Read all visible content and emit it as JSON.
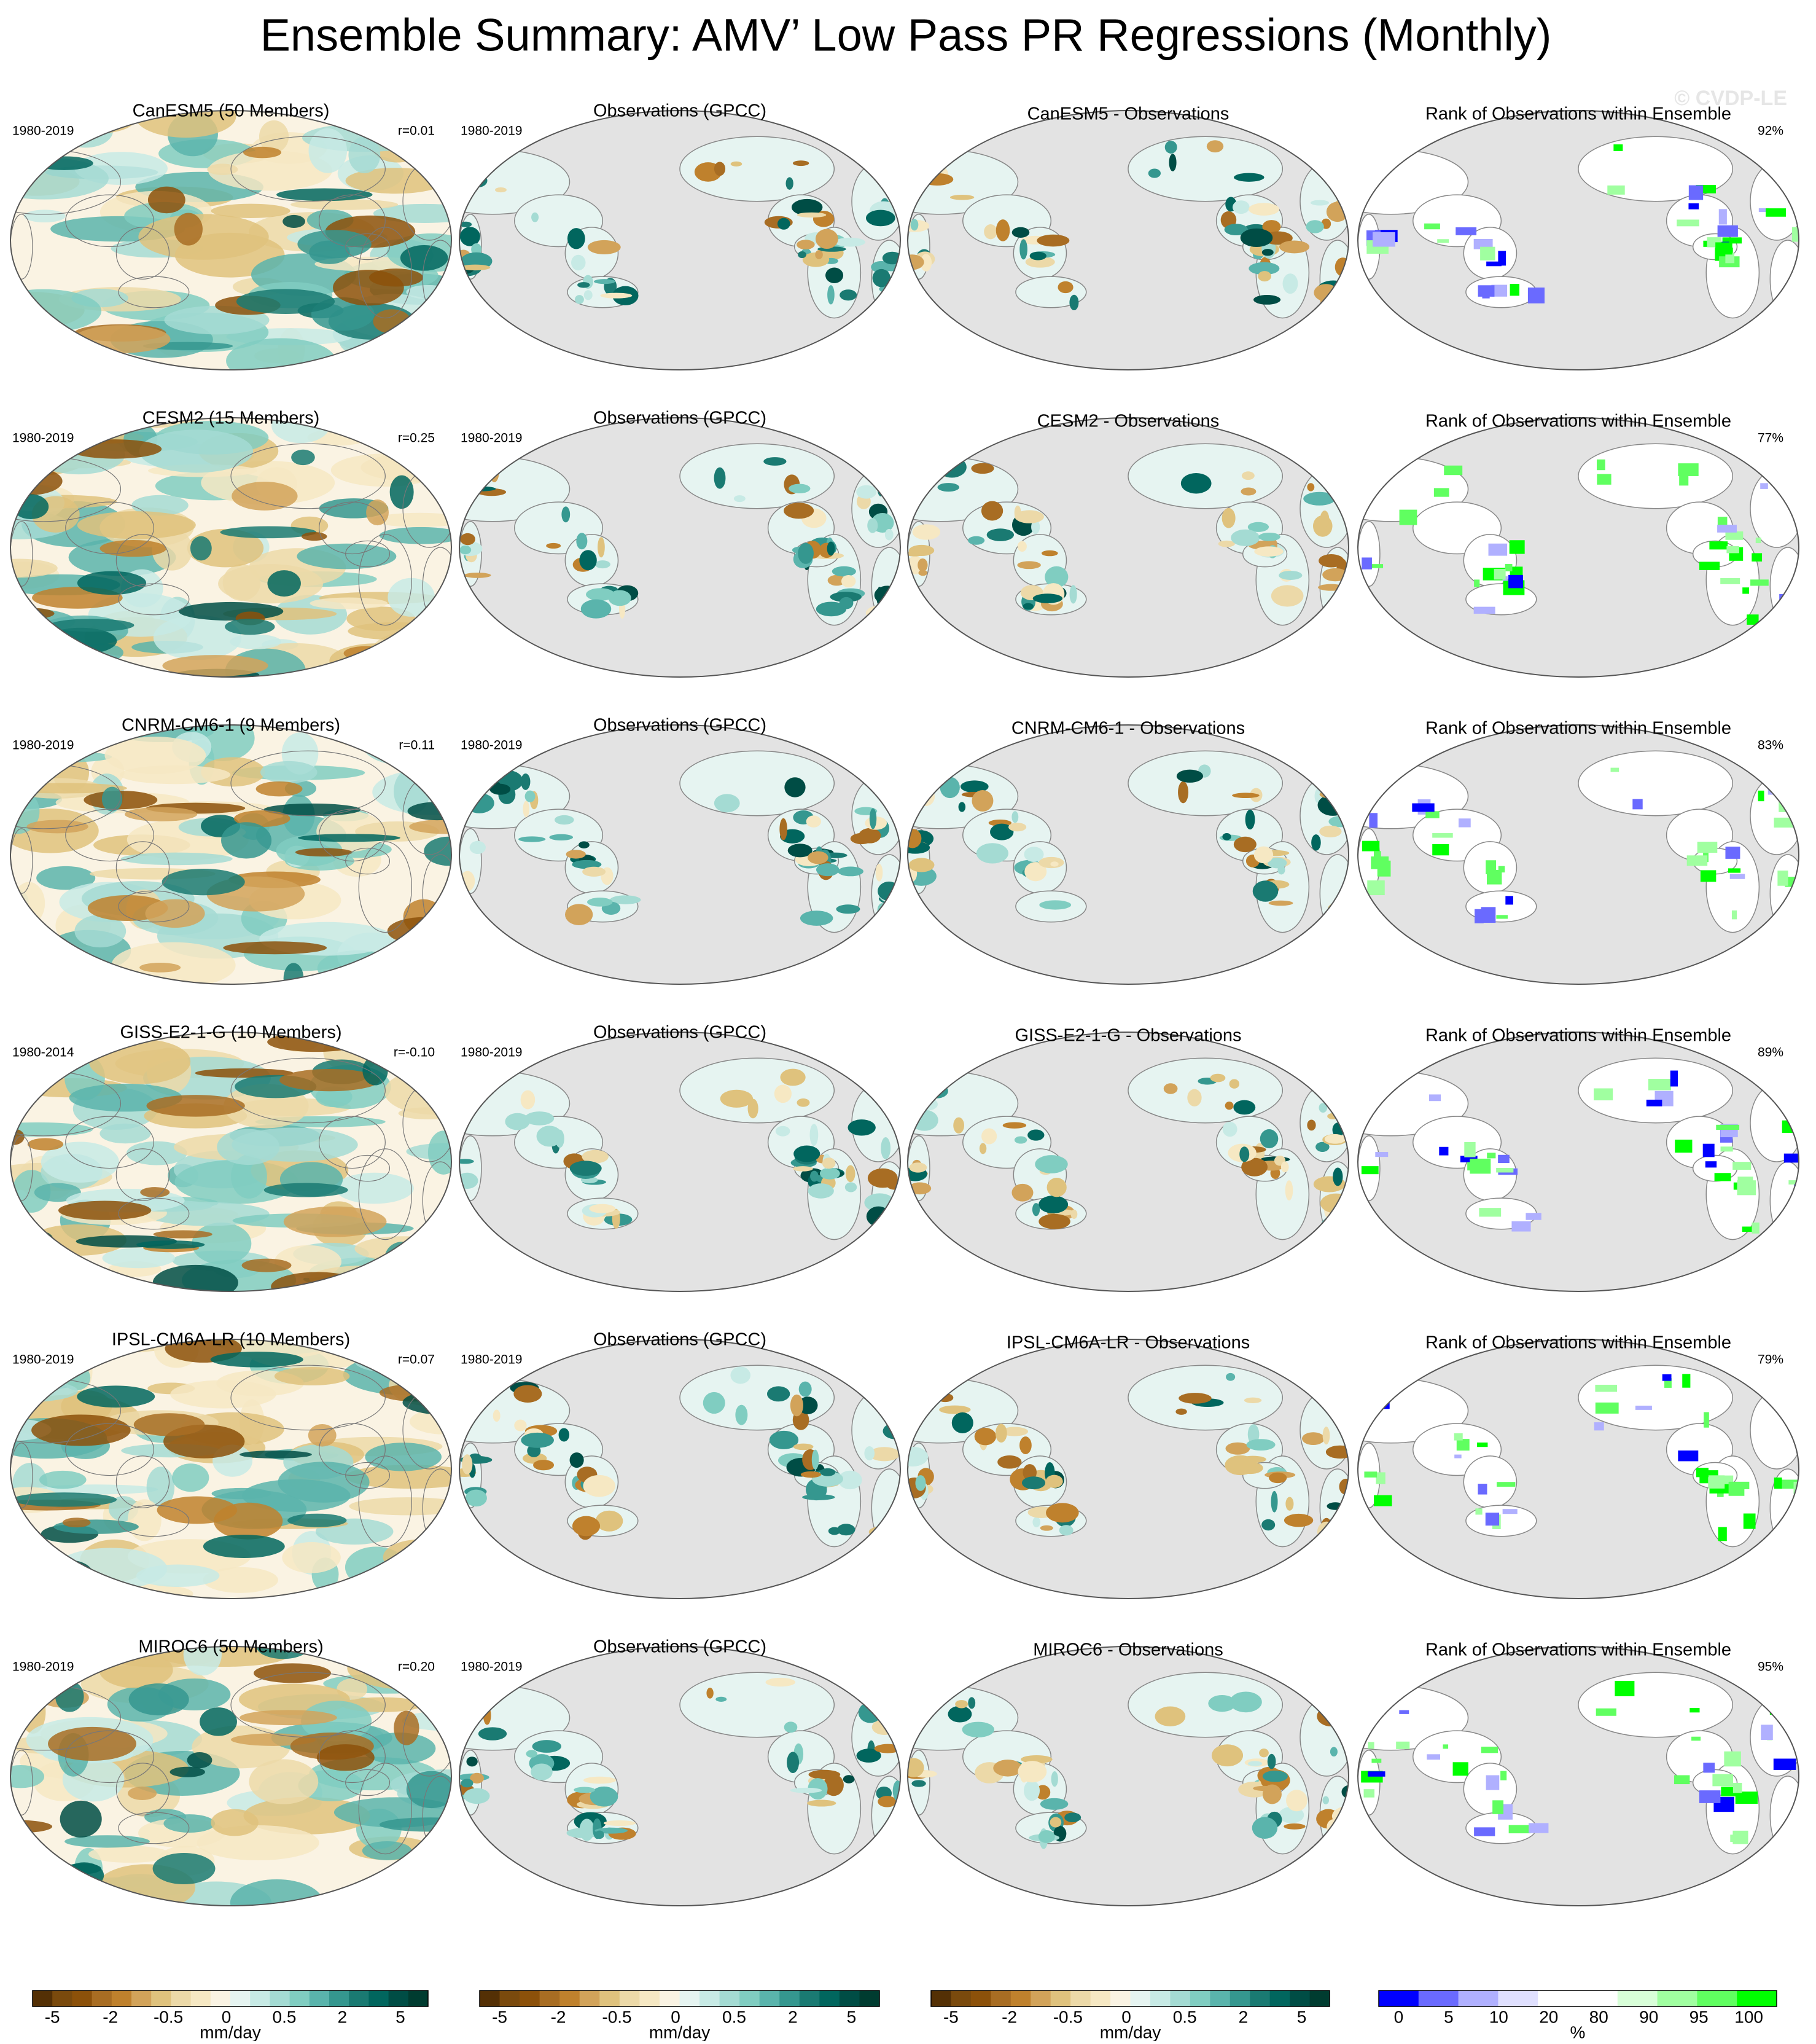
{
  "title": "Ensemble Summary: AMV’ Low Pass PR Regressions (Monthly)",
  "watermark": "© CVDP-LE",
  "rows": [
    {
      "model_title": "CanESM5 (50 Members)",
      "model_period": "1980-2019",
      "r": "r=0.01",
      "obs_title": "Observations (GPCC)",
      "obs_period": "1980-2019",
      "diff_title": "CanESM5 - Observations",
      "rank_title": "Rank of Observations within Ensemble",
      "rank_pct": "92%"
    },
    {
      "model_title": "CESM2 (15 Members)",
      "model_period": "1980-2019",
      "r": "r=0.25",
      "obs_title": "Observations (GPCC)",
      "obs_period": "1980-2019",
      "diff_title": "CESM2 - Observations",
      "rank_title": "Rank of Observations within Ensemble",
      "rank_pct": "77%"
    },
    {
      "model_title": "CNRM-CM6-1 (9 Members)",
      "model_period": "1980-2019",
      "r": "r=0.11",
      "obs_title": "Observations (GPCC)",
      "obs_period": "1980-2019",
      "diff_title": "CNRM-CM6-1 - Observations",
      "rank_title": "Rank of Observations within Ensemble",
      "rank_pct": "83%"
    },
    {
      "model_title": "GISS-E2-1-G (10 Members)",
      "model_period": "1980-2014",
      "r": "r=-0.10",
      "obs_title": "Observations (GPCC)",
      "obs_period": "1980-2019",
      "diff_title": "GISS-E2-1-G - Observations",
      "rank_title": "Rank of Observations within Ensemble",
      "rank_pct": "89%"
    },
    {
      "model_title": "IPSL-CM6A-LR (10 Members)",
      "model_period": "1980-2019",
      "r": "r=0.07",
      "obs_title": "Observations (GPCC)",
      "obs_period": "1980-2019",
      "diff_title": "IPSL-CM6A-LR - Observations",
      "rank_title": "Rank of Observations within Ensemble",
      "rank_pct": "79%"
    },
    {
      "model_title": "MIROC6 (50 Members)",
      "model_period": "1980-2019",
      "r": "r=0.20",
      "obs_title": "Observations (GPCC)",
      "obs_period": "1980-2019",
      "diff_title": "MIROC6 - Observations",
      "rank_title": "Rank of Observations within Ensemble",
      "rank_pct": "95%"
    }
  ],
  "colorbars": [
    {
      "colors": [
        "#543005",
        "#7a4a0d",
        "#8c510a",
        "#a86d23",
        "#bf812d",
        "#d2a35a",
        "#dfc27d",
        "#ecd9a8",
        "#f6e8c3",
        "#faf3e3",
        "#e6f4f1",
        "#c7eae5",
        "#a4dbd3",
        "#80cdc1",
        "#5ab4ac",
        "#35978f",
        "#1a7a72",
        "#01665e",
        "#004d45",
        "#003c30"
      ],
      "ticks": [
        -5,
        -2,
        -0.5,
        0,
        0.5,
        2,
        5
      ],
      "units": "mm/day"
    },
    {
      "colors": [
        "#543005",
        "#7a4a0d",
        "#8c510a",
        "#a86d23",
        "#bf812d",
        "#d2a35a",
        "#dfc27d",
        "#ecd9a8",
        "#f6e8c3",
        "#faf3e3",
        "#e6f4f1",
        "#c7eae5",
        "#a4dbd3",
        "#80cdc1",
        "#5ab4ac",
        "#35978f",
        "#1a7a72",
        "#01665e",
        "#004d45",
        "#003c30"
      ],
      "ticks": [
        -5,
        -2,
        -0.5,
        0,
        0.5,
        2,
        5
      ],
      "units": "mm/day"
    },
    {
      "colors": [
        "#543005",
        "#7a4a0d",
        "#8c510a",
        "#a86d23",
        "#bf812d",
        "#d2a35a",
        "#dfc27d",
        "#ecd9a8",
        "#f6e8c3",
        "#faf3e3",
        "#e6f4f1",
        "#c7eae5",
        "#a4dbd3",
        "#80cdc1",
        "#5ab4ac",
        "#35978f",
        "#1a7a72",
        "#01665e",
        "#004d45",
        "#003c30"
      ],
      "ticks": [
        -5,
        -2,
        -0.5,
        0,
        0.5,
        2,
        5
      ],
      "units": "mm/day"
    },
    {
      "colors": [
        "#0000ff",
        "#6a6aff",
        "#b0b0ff",
        "#e0e0ff",
        "#ffffff",
        "#ffffff",
        "#d8ffd8",
        "#a0ffa0",
        "#60ff60",
        "#00ff00"
      ],
      "ticks": [
        0,
        5,
        10,
        20,
        80,
        90,
        95,
        100
      ],
      "units": "%"
    }
  ]
}
